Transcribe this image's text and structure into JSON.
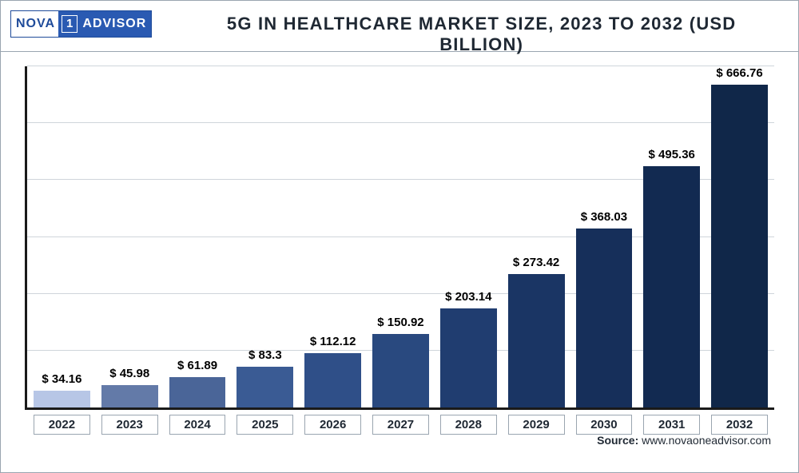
{
  "logo": {
    "left": "NOVA",
    "one": "1",
    "right": "ADVISOR"
  },
  "title": "5G IN HEALTHCARE MARKET SIZE, 2023 TO 2032 (USD BILLION)",
  "source_label": "Source: ",
  "source_value": "www.novaoneadvisor.com",
  "chart": {
    "type": "bar",
    "ylim": [
      0,
      700
    ],
    "grid_steps": 6,
    "grid_color": "#cfd5db",
    "axis_color": "#1a1a1a",
    "background_color": "#ffffff",
    "value_fontsize": 15,
    "tick_fontsize": 15,
    "categories": [
      "2022",
      "2023",
      "2024",
      "2025",
      "2026",
      "2027",
      "2028",
      "2029",
      "2030",
      "2031",
      "2032"
    ],
    "values": [
      34.16,
      45.98,
      61.89,
      83.3,
      112.12,
      150.92,
      203.14,
      273.42,
      368.03,
      495.36,
      666.76
    ],
    "value_labels": [
      "$ 34.16",
      "$ 45.98",
      "$ 61.89",
      "$ 83.3",
      "$ 112.12",
      "$ 150.92",
      "$ 203.14",
      "$ 273.42",
      "$ 368.03",
      "$ 495.36",
      "$ 666.76"
    ],
    "bar_colors": [
      "#b7c6e6",
      "#637aa8",
      "#4a6598",
      "#3a5b94",
      "#2f4f88",
      "#29497f",
      "#203d70",
      "#1a3564",
      "#162f5a",
      "#122a51",
      "#102749"
    ],
    "tick_border_color": "#9aa5b0"
  }
}
